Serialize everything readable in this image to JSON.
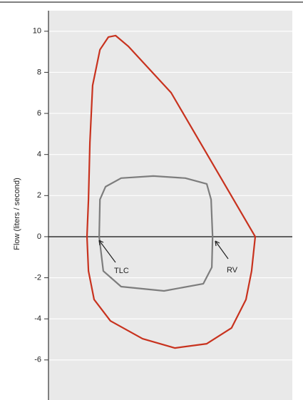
{
  "chart_data": {
    "type": "line",
    "y_label": "Flow (liters / second)",
    "xlim": [
      0,
      10
    ],
    "ylim": [
      -7.95,
      11
    ],
    "yticks": [
      -6,
      -4,
      -2,
      0,
      2,
      4,
      6,
      8,
      10
    ],
    "grid": true,
    "series": [
      {
        "color": "#c8321e",
        "x": [
          8.48,
          5.03,
          3.27,
          2.75,
          2.46,
          2.11,
          1.81,
          1.7,
          1.64,
          1.58,
          1.64,
          1.87,
          2.54,
          3.86,
          5.18,
          6.49,
          7.51,
          8.1,
          8.33,
          8.48
        ],
        "values": [
          0,
          7.01,
          9.27,
          9.79,
          9.72,
          9.1,
          7.36,
          4.58,
          1.81,
          0,
          -1.67,
          -3.06,
          -4.1,
          -4.97,
          -5.42,
          -5.21,
          -4.44,
          -3.06,
          -1.67,
          0
        ]
      },
      {
        "color": "#7d7d7d",
        "x": [
          2.08,
          2.11,
          2.34,
          2.98,
          4.3,
          5.61,
          6.49,
          6.67,
          6.73,
          6.7,
          6.35,
          4.74,
          2.98,
          2.25,
          2.08
        ],
        "values": [
          0,
          1.81,
          2.43,
          2.85,
          2.95,
          2.85,
          2.57,
          1.81,
          0,
          -1.49,
          -2.29,
          -2.64,
          -2.43,
          -1.67,
          0
        ]
      }
    ],
    "annotations": [
      "TLC",
      "RV"
    ]
  }
}
